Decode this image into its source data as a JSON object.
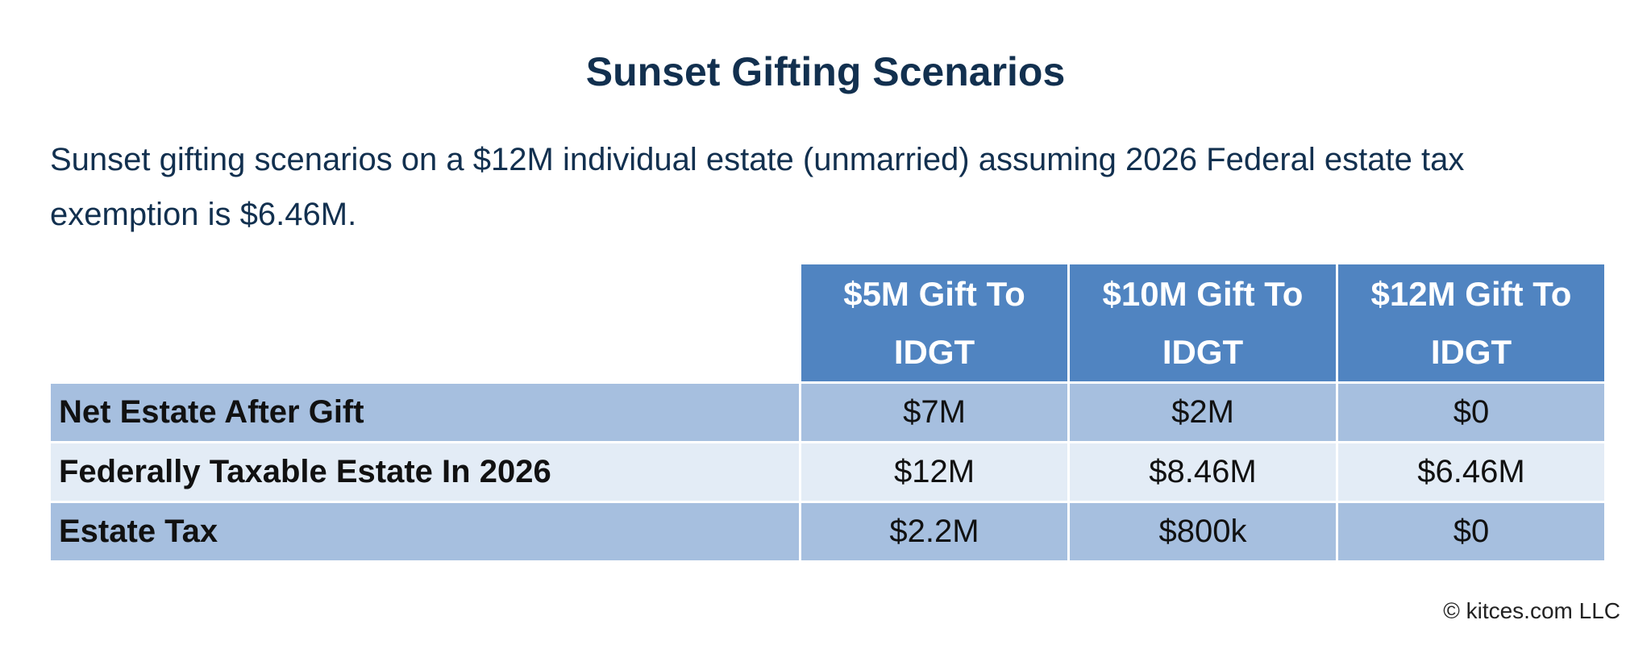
{
  "title": "Sunset Gifting Scenarios",
  "subtitle": "Sunset gifting scenarios on a $12M individual estate (unmarried) assuming 2026 Federal estate tax exemption is $6.46M.",
  "table": {
    "headers": [
      "$5M Gift To IDGT",
      "$10M Gift To IDGT",
      "$12M Gift To IDGT"
    ],
    "rows": [
      {
        "label": "Net Estate After Gift",
        "values": [
          "$7M",
          "$2M",
          "$0"
        ]
      },
      {
        "label": "Federally Taxable Estate In 2026",
        "values": [
          "$12M",
          "$8.46M",
          "$6.46M"
        ]
      },
      {
        "label": "Estate Tax",
        "values": [
          "$2.2M",
          "$800k",
          "$0"
        ]
      }
    ]
  },
  "colors": {
    "header": "#5084c1",
    "row_dark": "#a6bfdf",
    "row_light": "#e3ecf6",
    "title": "#12304f"
  },
  "copyright": "© kitces.com LLC"
}
